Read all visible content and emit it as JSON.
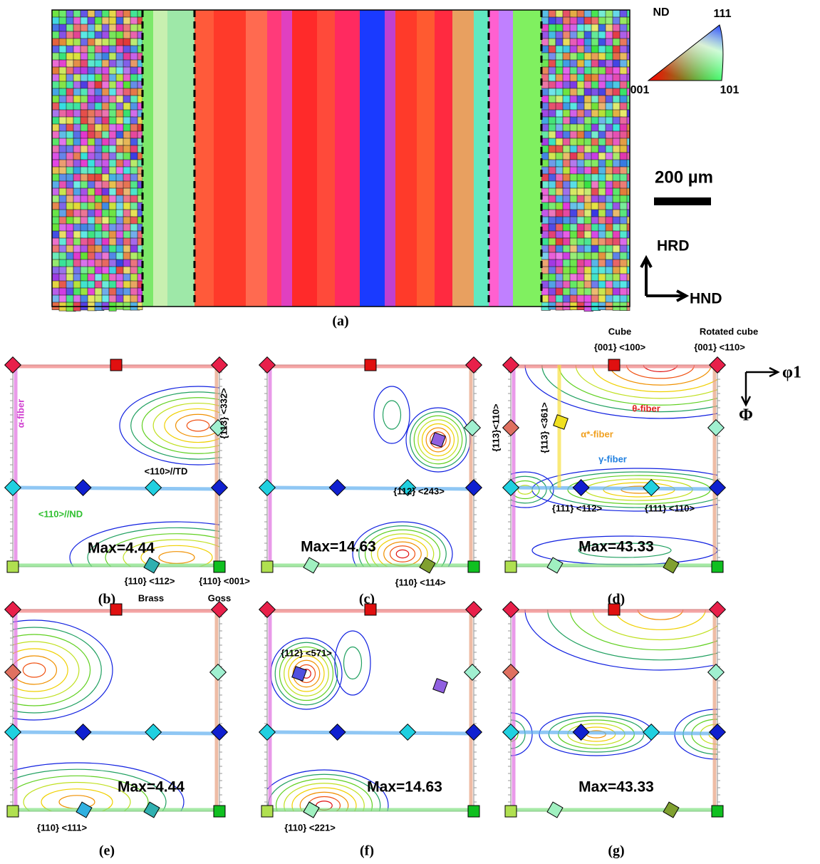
{
  "panel_a": {
    "ipf_title": "ND",
    "ipf_labels": [
      "111",
      "001",
      "101"
    ],
    "scale_bar": "200 µm",
    "axis_up": "HRD",
    "axis_right": "HND",
    "caption": "(a)"
  },
  "odf_axes": [
    "φ1",
    "Φ"
  ],
  "panels": [
    {
      "caption": "(b)",
      "max_label": "Max=4.44",
      "annotations": [
        "α-fiber",
        "{113} <332>",
        "<110>//TD",
        "<110>//ND",
        "{110} <112>",
        "{110} <001>",
        "Brass",
        "Goss"
      ]
    },
    {
      "caption": "(c)",
      "max_label": "Max=14.63",
      "annotations": [
        "{112} <243>",
        "{110} <114>"
      ]
    },
    {
      "caption": "(d)",
      "max_label": "Max=43.33",
      "annotations": [
        "Cube",
        "{001} <100>",
        "Rotated cube",
        "{001} <110>",
        "θ-fiber",
        "{113}<110>",
        "{113} <361>",
        "α*-fiber",
        "γ-fiber",
        "{111} <112>",
        "{111} <110>"
      ]
    },
    {
      "caption": "(e)",
      "max_label": "Max=4.44",
      "annotations": [
        "{110} <111>"
      ]
    },
    {
      "caption": "(f)",
      "max_label": "Max=14.63",
      "annotations": [
        "{112} <571>",
        "{110} <221>"
      ]
    },
    {
      "caption": "(g)",
      "max_label": "Max=43.33",
      "annotations": []
    }
  ]
}
